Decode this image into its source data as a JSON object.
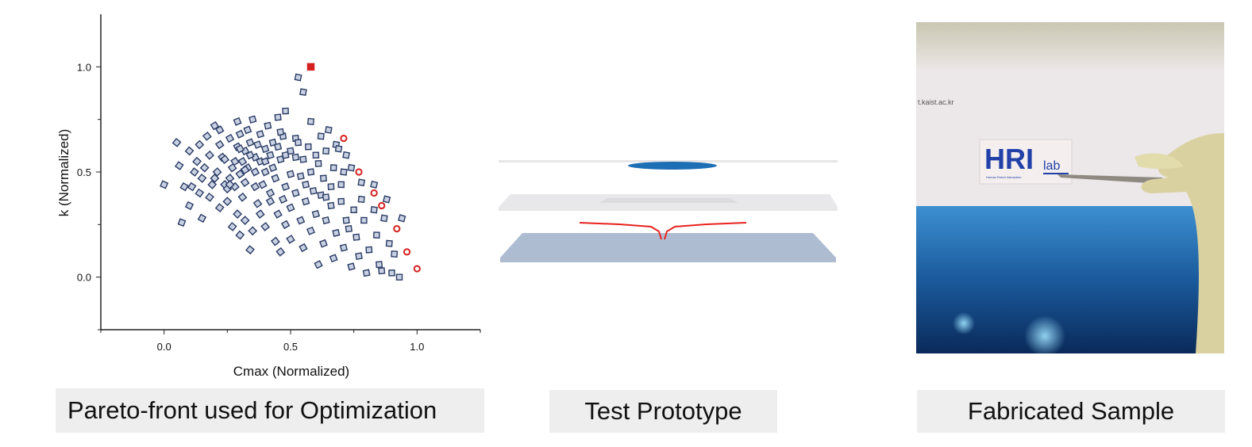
{
  "chart_data": {
    "type": "scatter",
    "xlabel": "Cmax (Normalized)",
    "ylabel": "k (Normalized)",
    "xlim": [
      -0.25,
      1.25
    ],
    "ylim": [
      -0.25,
      1.25
    ],
    "xticks": [
      0.0,
      0.5,
      1.0
    ],
    "yticks": [
      0.0,
      0.5,
      1.0
    ],
    "xtick_labels": [
      "0.0",
      "0.5",
      "1.0"
    ],
    "ytick_labels": [
      "0.0",
      "0.5",
      "1.0"
    ],
    "grid": false,
    "series": [
      {
        "role": "candidate designs",
        "color": "#2a3b63",
        "points": [
          [
            0.0,
            0.44
          ],
          [
            0.05,
            0.64
          ],
          [
            0.06,
            0.53
          ],
          [
            0.08,
            0.43
          ],
          [
            0.1,
            0.6
          ],
          [
            0.11,
            0.43
          ],
          [
            0.12,
            0.5
          ],
          [
            0.13,
            0.55
          ],
          [
            0.14,
            0.63
          ],
          [
            0.15,
            0.47
          ],
          [
            0.16,
            0.52
          ],
          [
            0.17,
            0.67
          ],
          [
            0.18,
            0.58
          ],
          [
            0.19,
            0.44
          ],
          [
            0.2,
            0.47
          ],
          [
            0.21,
            0.5
          ],
          [
            0.22,
            0.7
          ],
          [
            0.22,
            0.63
          ],
          [
            0.23,
            0.57
          ],
          [
            0.24,
            0.44
          ],
          [
            0.25,
            0.42
          ],
          [
            0.26,
            0.47
          ],
          [
            0.27,
            0.52
          ],
          [
            0.28,
            0.43
          ],
          [
            0.28,
            0.55
          ],
          [
            0.29,
            0.62
          ],
          [
            0.29,
            0.74
          ],
          [
            0.3,
            0.49
          ],
          [
            0.3,
            0.68
          ],
          [
            0.31,
            0.55
          ],
          [
            0.32,
            0.45
          ],
          [
            0.32,
            0.6
          ],
          [
            0.33,
            0.52
          ],
          [
            0.33,
            0.7
          ],
          [
            0.34,
            0.64
          ],
          [
            0.35,
            0.75
          ],
          [
            0.36,
            0.5
          ],
          [
            0.36,
            0.57
          ],
          [
            0.37,
            0.63
          ],
          [
            0.38,
            0.55
          ],
          [
            0.38,
            0.68
          ],
          [
            0.39,
            0.44
          ],
          [
            0.4,
            0.61
          ],
          [
            0.4,
            0.5
          ],
          [
            0.41,
            0.72
          ],
          [
            0.42,
            0.58
          ],
          [
            0.43,
            0.64
          ],
          [
            0.43,
            0.52
          ],
          [
            0.44,
            0.47
          ],
          [
            0.45,
            0.62
          ],
          [
            0.45,
            0.76
          ],
          [
            0.46,
            0.56
          ],
          [
            0.47,
            0.67
          ],
          [
            0.48,
            0.43
          ],
          [
            0.48,
            0.79
          ],
          [
            0.5,
            0.6
          ],
          [
            0.5,
            0.49
          ],
          [
            0.52,
            0.57
          ],
          [
            0.52,
            0.66
          ],
          [
            0.53,
            0.95
          ],
          [
            0.54,
            0.48
          ],
          [
            0.55,
            0.88
          ],
          [
            0.55,
            0.56
          ],
          [
            0.56,
            0.44
          ],
          [
            0.57,
            0.62
          ],
          [
            0.58,
            0.5
          ],
          [
            0.59,
            0.41
          ],
          [
            0.6,
            0.58
          ],
          [
            0.61,
            0.54
          ],
          [
            0.62,
            0.67
          ],
          [
            0.63,
            0.47
          ],
          [
            0.64,
            0.6
          ],
          [
            0.65,
            0.7
          ],
          [
            0.66,
            0.43
          ],
          [
            0.67,
            0.52
          ],
          [
            0.68,
            0.63
          ],
          [
            0.7,
            0.44
          ],
          [
            0.71,
            0.5
          ],
          [
            0.72,
            0.58
          ],
          [
            0.74,
            0.52
          ],
          [
            0.07,
            0.26
          ],
          [
            0.15,
            0.28
          ],
          [
            0.18,
            0.38
          ],
          [
            0.22,
            0.33
          ],
          [
            0.25,
            0.36
          ],
          [
            0.27,
            0.24
          ],
          [
            0.29,
            0.3
          ],
          [
            0.3,
            0.2
          ],
          [
            0.31,
            0.38
          ],
          [
            0.32,
            0.27
          ],
          [
            0.34,
            0.13
          ],
          [
            0.35,
            0.22
          ],
          [
            0.37,
            0.35
          ],
          [
            0.38,
            0.3
          ],
          [
            0.4,
            0.24
          ],
          [
            0.42,
            0.4
          ],
          [
            0.44,
            0.17
          ],
          [
            0.45,
            0.3
          ],
          [
            0.46,
            0.12
          ],
          [
            0.47,
            0.37
          ],
          [
            0.48,
            0.25
          ],
          [
            0.5,
            0.33
          ],
          [
            0.5,
            0.18
          ],
          [
            0.52,
            0.4
          ],
          [
            0.54,
            0.27
          ],
          [
            0.55,
            0.14
          ],
          [
            0.56,
            0.36
          ],
          [
            0.58,
            0.22
          ],
          [
            0.6,
            0.3
          ],
          [
            0.61,
            0.06
          ],
          [
            0.62,
            0.39
          ],
          [
            0.63,
            0.16
          ],
          [
            0.64,
            0.27
          ],
          [
            0.66,
            0.34
          ],
          [
            0.67,
            0.09
          ],
          [
            0.68,
            0.21
          ],
          [
            0.7,
            0.36
          ],
          [
            0.71,
            0.14
          ],
          [
            0.72,
            0.27
          ],
          [
            0.74,
            0.05
          ],
          [
            0.75,
            0.32
          ],
          [
            0.76,
            0.19
          ],
          [
            0.77,
            0.1
          ],
          [
            0.78,
            0.37
          ],
          [
            0.79,
            0.27
          ],
          [
            0.8,
            0.02
          ],
          [
            0.81,
            0.13
          ],
          [
            0.83,
            0.32
          ],
          [
            0.84,
            0.2
          ],
          [
            0.85,
            0.06
          ],
          [
            0.86,
            0.03
          ],
          [
            0.87,
            0.28
          ],
          [
            0.89,
            0.16
          ],
          [
            0.9,
            0.02
          ],
          [
            0.91,
            0.11
          ],
          [
            0.93,
            0.0
          ],
          [
            0.94,
            0.28
          ],
          [
            0.2,
            0.72
          ],
          [
            0.26,
            0.66
          ],
          [
            0.14,
            0.4
          ],
          [
            0.1,
            0.34
          ],
          [
            0.3,
            0.61
          ],
          [
            0.36,
            0.43
          ],
          [
            0.42,
            0.36
          ],
          [
            0.58,
            0.74
          ],
          [
            0.64,
            0.38
          ],
          [
            0.69,
            0.61
          ],
          [
            0.73,
            0.23
          ],
          [
            0.78,
            0.45
          ],
          [
            0.83,
            0.44
          ],
          [
            0.88,
            0.37
          ],
          [
            0.24,
            0.56
          ],
          [
            0.34,
            0.58
          ],
          [
            0.46,
            0.69
          ],
          [
            0.53,
            0.64
          ],
          [
            0.4,
            0.55
          ],
          [
            0.48,
            0.58
          ],
          [
            0.26,
            0.44
          ],
          [
            0.32,
            0.51
          ]
        ]
      },
      {
        "role": "pareto front",
        "color": "#d62020",
        "points": [
          [
            0.58,
            1.0
          ],
          [
            0.71,
            0.66
          ],
          [
            0.77,
            0.5
          ],
          [
            0.83,
            0.4
          ],
          [
            0.86,
            0.34
          ],
          [
            0.92,
            0.23
          ],
          [
            0.96,
            0.12
          ],
          [
            1.0,
            0.04
          ]
        ]
      }
    ]
  },
  "captions": {
    "left": "Pareto-front used for Optimization",
    "middle": "Test Prototype",
    "right": "Fabricated Sample"
  },
  "photo": {
    "url_text": "t.kaist.ac.kr",
    "logo_text": "HRI",
    "logo_sub": "lab",
    "logo_fine": "Human Robot Interaction"
  },
  "colors": {
    "candidate": "#2a3b63",
    "pareto": "#d62020",
    "trace": "#e8231e",
    "lens": "#1d6fb5"
  }
}
